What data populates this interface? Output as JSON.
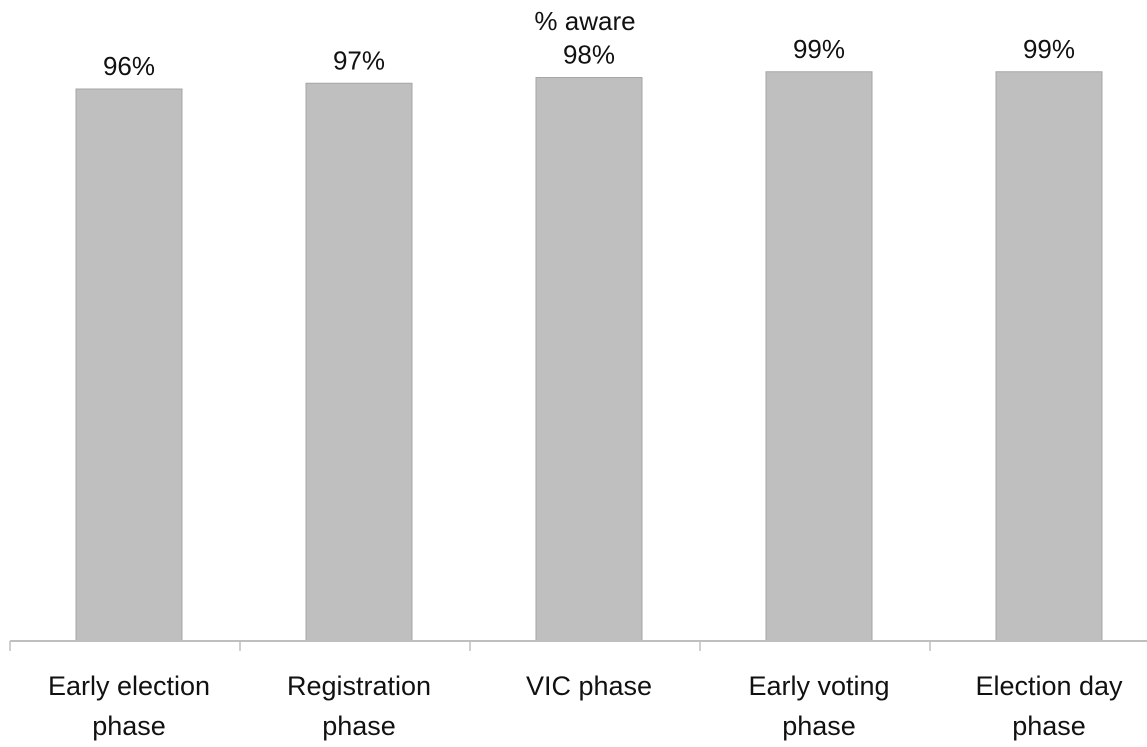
{
  "chart_data": {
    "type": "bar",
    "title": "% aware",
    "categories": [
      [
        "Early election",
        "phase"
      ],
      [
        "Registration",
        "phase"
      ],
      [
        "VIC phase"
      ],
      [
        "Early voting",
        "phase"
      ],
      [
        "Election day",
        "phase"
      ]
    ],
    "values": [
      96,
      97,
      98,
      99,
      99
    ],
    "value_labels": [
      "96%",
      "97%",
      "98%",
      "99%",
      "99%"
    ],
    "ylim": [
      0,
      100
    ],
    "grid": false,
    "legend": "none",
    "bar_color": "#bfbfbf",
    "bar_edge_color": "#a6a6a6",
    "axis_color": "#bfbfbf"
  }
}
